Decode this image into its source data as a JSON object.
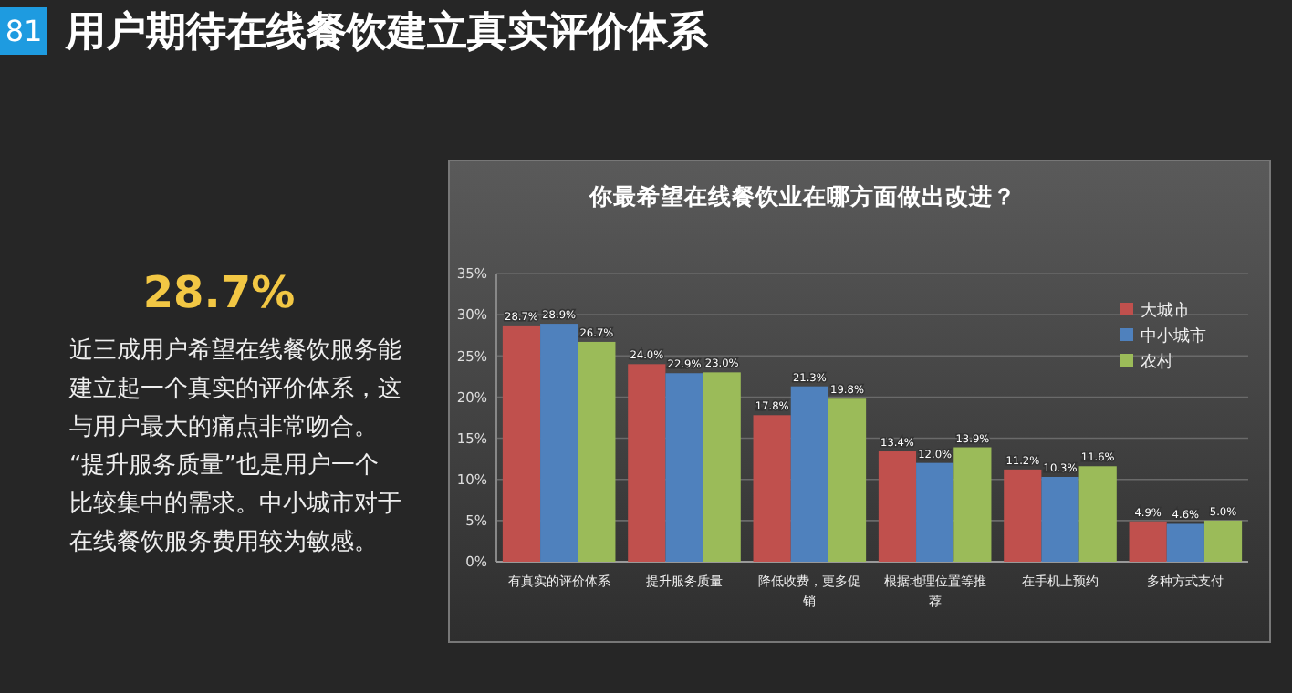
{
  "chart_data": {
    "type": "bar",
    "title": "用户期待在线餐饮建立真实评价体系",
    "subtitle": "你最希望在线餐饮业在哪方面做出改进？",
    "annotations": [
      "81",
      "28.7%",
      "近三成用户希望在线餐饮服务能",
      "建立起一个真实的评价体系，这",
      "与用户最大的痛点非常吻合。",
      "“提升服务质量”也是用户一个",
      "比较集中的需求。中小城市对于",
      "在线餐饮服务费用较为敏感。"
    ],
    "categories": [
      "有真实的评价体系",
      "提升服务质量",
      "降低收费，更多促销",
      "根据地理位置等推荐",
      "在手机上预约",
      "多种方式支付"
    ],
    "series": [
      {
        "name": "大城市",
        "color": "#c0504d",
        "values": [
          28.7,
          24.0,
          17.8,
          13.4,
          11.2,
          4.9
        ],
        "value_labels": [
          "28.7%",
          "24.0%",
          "17.8%",
          "13.4%",
          "11.2%",
          "4.9%"
        ]
      },
      {
        "name": "中小城市",
        "color": "#4f81bd",
        "values": [
          28.9,
          22.9,
          21.3,
          12.0,
          10.3,
          4.6
        ],
        "value_labels": [
          "28.9%",
          "22.9%",
          "21.3%",
          "12.0%",
          "10.3%",
          "4.6%"
        ]
      },
      {
        "name": "农村",
        "color": "#9bbb59",
        "values": [
          26.7,
          23.0,
          19.8,
          13.9,
          11.6,
          5.0
        ],
        "value_labels": [
          "26.7%",
          "23.0%",
          "19.8%",
          "13.9%",
          "11.6%",
          "5.0%"
        ]
      }
    ],
    "ylim": [
      0,
      35
    ],
    "yticks": [
      {
        "value": 0,
        "label": "0%"
      },
      {
        "value": 5,
        "label": "5%"
      },
      {
        "value": 10,
        "label": "10%"
      },
      {
        "value": 15,
        "label": "15%"
      },
      {
        "value": 20,
        "label": "20%"
      },
      {
        "value": 25,
        "label": "25%"
      },
      {
        "value": 30,
        "label": "30%"
      },
      {
        "value": 35,
        "label": "35%"
      }
    ],
    "grid": "y",
    "legend": "right"
  }
}
